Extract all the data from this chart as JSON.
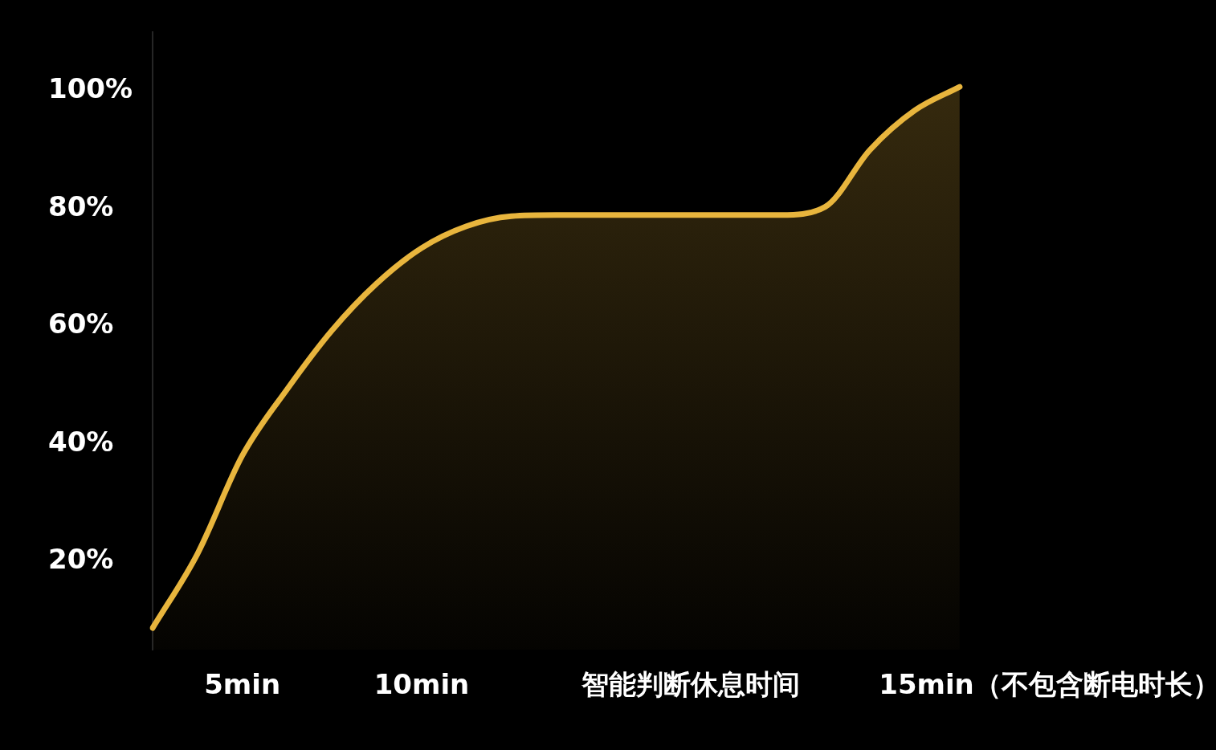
{
  "chart_data": {
    "type": "area",
    "categories": [
      null,
      null,
      "5min",
      null,
      null,
      null,
      "10min",
      null,
      null,
      null,
      null,
      null,
      "智能判断休息时间",
      null,
      null,
      null,
      null,
      null,
      null,
      null,
      "15min（不包含断电时长）",
      null,
      null,
      null
    ],
    "series": [
      {
        "color": "#e8b53d",
        "values": [
          8.7,
          21.3,
          38,
          49.3,
          59.3,
          67.3,
          73.3,
          77,
          78.7,
          78.9,
          78.9,
          78.9,
          78.9,
          78.9,
          78.9,
          80.3,
          90,
          96.7,
          100.7,
          null,
          null,
          null,
          null,
          null
        ]
      }
    ],
    "ylim": [
      5,
      110
    ],
    "yticks": [
      {
        "value": 20,
        "label": "20%"
      },
      {
        "value": 40,
        "label": "40%"
      },
      {
        "value": 60,
        "label": "60%"
      },
      {
        "value": 80,
        "label": "80%"
      },
      {
        "value": 100,
        "label": "100%"
      }
    ],
    "grid": false,
    "legend": false,
    "marker": "none",
    "line_style": "solid"
  }
}
